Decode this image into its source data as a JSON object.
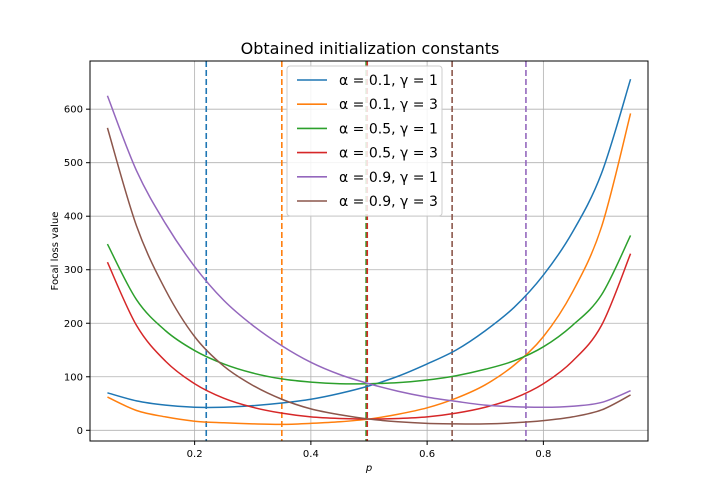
{
  "chart_data": {
    "type": "line",
    "title": "Obtained initialization constants",
    "xlabel": "p",
    "ylabel": "Focal loss value",
    "xlim": [
      0.02,
      0.98
    ],
    "ylim": [
      -20,
      690
    ],
    "xticks": [
      0.2,
      0.4,
      0.6,
      0.8
    ],
    "xtick_labels": [
      "0.2",
      "0.4",
      "0.6",
      "0.8"
    ],
    "yticks": [
      0,
      100,
      200,
      300,
      400,
      500,
      600
    ],
    "ytick_labels": [
      "0",
      "100",
      "200",
      "300",
      "400",
      "500",
      "600"
    ],
    "grid": true,
    "legend_position": "top-center",
    "x": [
      0.05,
      0.1,
      0.15,
      0.2,
      0.25,
      0.3,
      0.35,
      0.4,
      0.45,
      0.5,
      0.55,
      0.6,
      0.65,
      0.7,
      0.75,
      0.8,
      0.85,
      0.9,
      0.95
    ],
    "series": [
      {
        "name": "α = 0.1, γ = 1",
        "color": "#1f77b4",
        "optimum_p": 0.22,
        "values": [
          70,
          55,
          47,
          43,
          43,
          46,
          51,
          58,
          69,
          83,
          101,
          124,
          150,
          186,
          230,
          290,
          370,
          480,
          656
        ]
      },
      {
        "name": "α = 0.1, γ = 3",
        "color": "#ff7f0e",
        "optimum_p": 0.35,
        "values": [
          62,
          37,
          25,
          17,
          14,
          12,
          11,
          13,
          16,
          21,
          30,
          42,
          60,
          85,
          122,
          175,
          258,
          380,
          592
        ]
      },
      {
        "name": "α = 0.5, γ = 1",
        "color": "#2ca02c",
        "optimum_p": 0.495,
        "values": [
          348,
          244,
          186,
          149,
          124,
          107,
          96,
          90,
          87,
          87,
          89,
          94,
          102,
          114,
          130,
          156,
          196,
          253,
          364
        ]
      },
      {
        "name": "α = 0.5, γ = 3",
        "color": "#d62728",
        "optimum_p": 0.497,
        "values": [
          314,
          196,
          129,
          87,
          60,
          43,
          32,
          25,
          22,
          21,
          22,
          25,
          32,
          43,
          60,
          87,
          129,
          196,
          330
        ]
      },
      {
        "name": "α = 0.9, γ = 1",
        "color": "#9467bd",
        "optimum_p": 0.77,
        "values": [
          625,
          485,
          386,
          306,
          243,
          196,
          158,
          127,
          104,
          87,
          73,
          62,
          54,
          47,
          44,
          43,
          45,
          52,
          74
        ]
      },
      {
        "name": "α = 0.9, γ = 3",
        "color": "#8c564b",
        "optimum_p": 0.643,
        "values": [
          565,
          382,
          262,
          175,
          120,
          84,
          58,
          40,
          29,
          21,
          16,
          13,
          12,
          12,
          14,
          18,
          25,
          38,
          66
        ]
      }
    ]
  }
}
